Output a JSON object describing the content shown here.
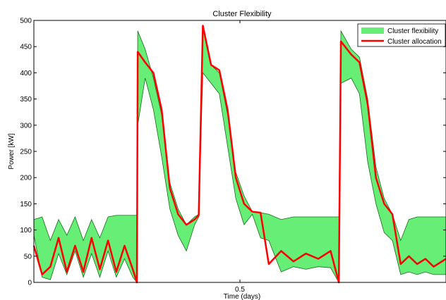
{
  "chart_data": {
    "type": "area",
    "title": "Cluster Flexibility",
    "xlabel": "Time (days)",
    "ylabel": "Power [kW]",
    "xlim": [
      0,
      1
    ],
    "ylim": [
      0,
      500
    ],
    "x_ticks": [
      0.5
    ],
    "y_ticks": [
      0,
      50,
      100,
      150,
      200,
      250,
      300,
      350,
      400,
      450,
      500
    ],
    "grid": false,
    "legend_position": "top-right",
    "colors": {
      "flexibility": "#66ee77",
      "flex_edge": "#1a6a1a",
      "allocation": "#ff0000"
    },
    "series": [
      {
        "name": "Cluster flexibility",
        "kind": "band",
        "x": [
          0.0,
          0.02,
          0.04,
          0.06,
          0.08,
          0.1,
          0.12,
          0.14,
          0.16,
          0.18,
          0.2,
          0.22,
          0.24,
          0.25,
          0.252,
          0.27,
          0.29,
          0.31,
          0.33,
          0.35,
          0.37,
          0.39,
          0.4,
          0.41,
          0.43,
          0.45,
          0.47,
          0.49,
          0.51,
          0.53,
          0.55,
          0.57,
          0.6,
          0.63,
          0.66,
          0.69,
          0.72,
          0.74,
          0.745,
          0.77,
          0.79,
          0.81,
          0.83,
          0.85,
          0.87,
          0.89,
          0.91,
          0.93,
          0.95,
          0.97,
          1.0
        ],
        "upper": [
          120,
          125,
          80,
          120,
          90,
          125,
          80,
          120,
          85,
          125,
          128,
          128,
          128,
          128,
          480,
          445,
          390,
          320,
          190,
          140,
          110,
          125,
          130,
          490,
          415,
          400,
          320,
          210,
          165,
          135,
          133,
          130,
          120,
          125,
          125,
          125,
          125,
          125,
          480,
          445,
          430,
          350,
          220,
          160,
          130,
          80,
          120,
          125,
          125,
          125,
          125
        ],
        "lower": [
          90,
          10,
          5,
          55,
          15,
          60,
          10,
          55,
          10,
          60,
          10,
          45,
          10,
          0,
          300,
          390,
          330,
          240,
          140,
          90,
          60,
          110,
          125,
          400,
          380,
          360,
          260,
          160,
          110,
          130,
          85,
          80,
          20,
          30,
          25,
          30,
          28,
          0,
          380,
          390,
          360,
          230,
          150,
          95,
          80,
          15,
          20,
          15,
          20,
          15,
          15
        ]
      },
      {
        "name": "Cluster allocation",
        "kind": "line",
        "x": [
          0.0,
          0.02,
          0.04,
          0.06,
          0.08,
          0.1,
          0.12,
          0.14,
          0.16,
          0.18,
          0.2,
          0.22,
          0.24,
          0.25,
          0.252,
          0.27,
          0.29,
          0.31,
          0.33,
          0.35,
          0.37,
          0.39,
          0.4,
          0.41,
          0.43,
          0.45,
          0.47,
          0.49,
          0.51,
          0.53,
          0.55,
          0.57,
          0.6,
          0.63,
          0.66,
          0.69,
          0.72,
          0.74,
          0.745,
          0.77,
          0.79,
          0.81,
          0.83,
          0.85,
          0.87,
          0.89,
          0.91,
          0.93,
          0.95,
          0.97,
          1.0
        ],
        "values": [
          70,
          15,
          30,
          85,
          20,
          70,
          20,
          85,
          25,
          80,
          20,
          70,
          25,
          0,
          440,
          420,
          400,
          330,
          180,
          130,
          110,
          120,
          128,
          490,
          415,
          405,
          330,
          200,
          150,
          135,
          133,
          35,
          60,
          40,
          55,
          45,
          60,
          0,
          460,
          435,
          420,
          340,
          200,
          150,
          130,
          35,
          50,
          35,
          45,
          30,
          45
        ]
      }
    ]
  }
}
